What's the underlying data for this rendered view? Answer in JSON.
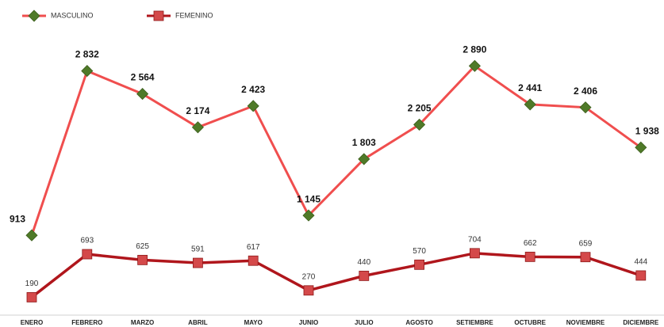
{
  "chart_data": {
    "type": "line",
    "categories": [
      "ENERO",
      "FEBRERO",
      "MARZO",
      "ABRIL",
      "MAYO",
      "JUNIO",
      "JULIO",
      "AGOSTO",
      "SETIEMBRE",
      "OCTUBRE",
      "NOVIEMBRE",
      "DICIEMBRE"
    ],
    "series": [
      {
        "name": "MASCULINO",
        "color": "#f04e4e",
        "marker_color": "#4f7a28",
        "values": [
          913,
          2832,
          2564,
          2174,
          2423,
          1145,
          1803,
          2205,
          2890,
          2441,
          2406,
          1938
        ],
        "value_labels": [
          "913",
          "2 832",
          "2 564",
          "2 174",
          "2 423",
          "1 145",
          "1 803",
          "2 205",
          "2 890",
          "2 441",
          "2 406",
          "1 938"
        ]
      },
      {
        "name": "FEMENINO",
        "color": "#b0161c",
        "marker_color": "#d4494a",
        "values": [
          190,
          693,
          625,
          591,
          617,
          270,
          440,
          570,
          704,
          662,
          659,
          444
        ]
      }
    ]
  }
}
